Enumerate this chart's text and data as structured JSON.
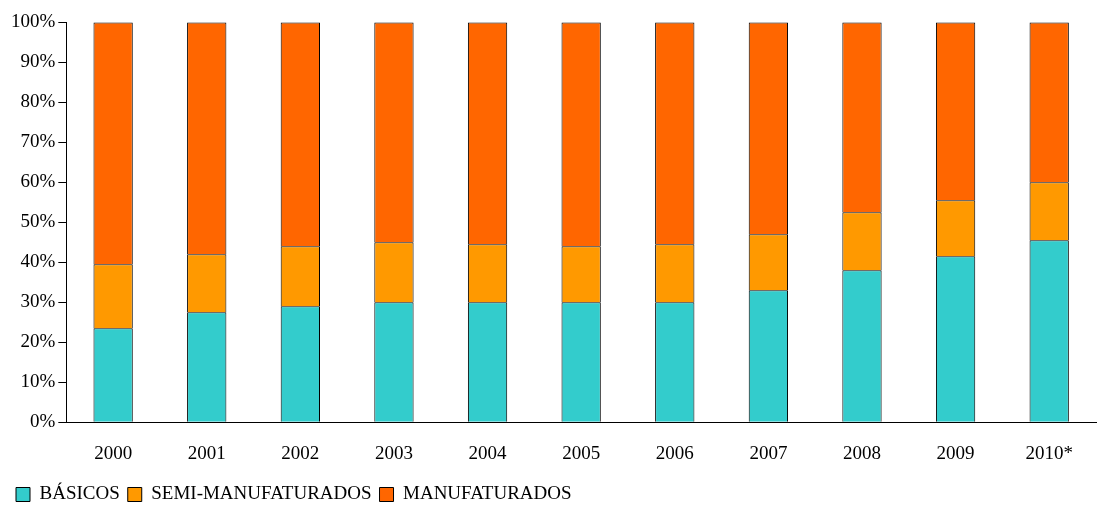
{
  "chart_data": {
    "type": "bar",
    "stacked": true,
    "categories": [
      "2000",
      "2001",
      "2002",
      "2003",
      "2004",
      "2005",
      "2006",
      "2007",
      "2008",
      "2009",
      "2010*"
    ],
    "series": [
      {
        "name": "BÁSICOS",
        "color": "#33cccc",
        "values": [
          23.5,
          27.5,
          29,
          30,
          30,
          30,
          30,
          33,
          38,
          41.5,
          45.5
        ]
      },
      {
        "name": "SEMI-MANUFATURADOS",
        "color": "#ff9900",
        "values": [
          16,
          14.5,
          15,
          15,
          14.5,
          14,
          14.5,
          14,
          14.5,
          14,
          14.5
        ]
      },
      {
        "name": "MANUFATURADOS",
        "color": "#ff6600",
        "values": [
          60.5,
          58,
          56,
          55,
          55.5,
          56,
          55.5,
          53,
          47.5,
          44.5,
          40
        ]
      }
    ],
    "ylim": [
      0,
      100
    ],
    "yticks": [
      {
        "value": 0,
        "label": "0%"
      },
      {
        "value": 10,
        "label": "10%"
      },
      {
        "value": 20,
        "label": "20%"
      },
      {
        "value": 30,
        "label": "30%"
      },
      {
        "value": 40,
        "label": "40%"
      },
      {
        "value": 50,
        "label": "50%"
      },
      {
        "value": 60,
        "label": "60%"
      },
      {
        "value": 70,
        "label": "70%"
      },
      {
        "value": 80,
        "label": "80%"
      },
      {
        "value": 90,
        "label": "90%"
      },
      {
        "value": 100,
        "label": "100%"
      }
    ],
    "grid": false,
    "legend": "bottom left"
  }
}
